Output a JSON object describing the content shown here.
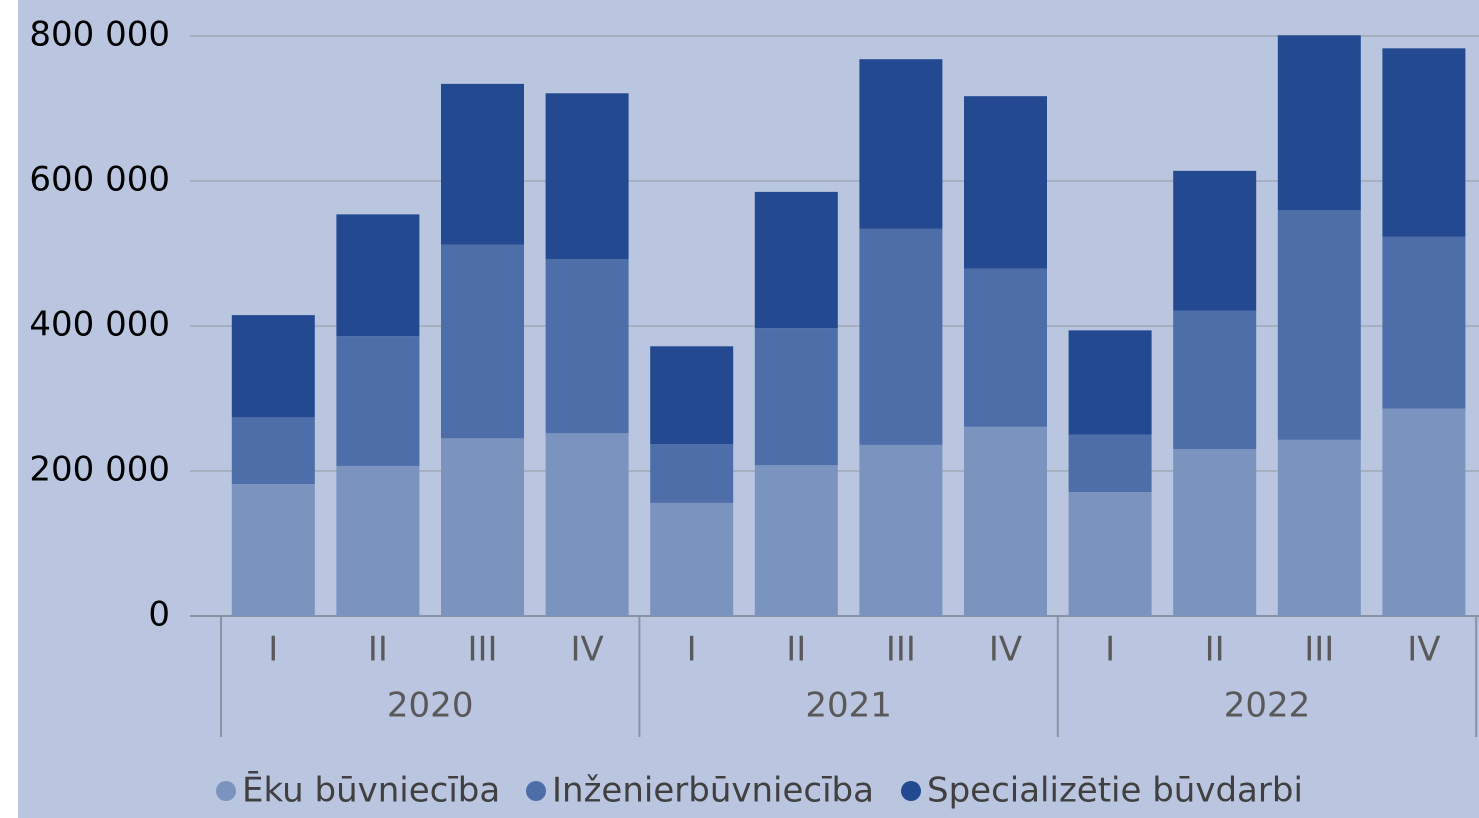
{
  "chart_data": {
    "type": "stacked-bar",
    "categories": [
      "I",
      "II",
      "III",
      "IV",
      "I",
      "II",
      "III",
      "IV",
      "I",
      "II",
      "III",
      "IV"
    ],
    "groups": [
      "2020",
      "2021",
      "2022"
    ],
    "series": [
      {
        "name": "Ēku būvniecība",
        "color": "#7b93bf",
        "values": [
          182000,
          207000,
          245000,
          252000,
          156000,
          208000,
          236000,
          261000,
          171000,
          230000,
          243000,
          286000
        ]
      },
      {
        "name": "Inženierbūvniecība",
        "color": "#4d6ea8",
        "values": [
          92000,
          179000,
          267000,
          240000,
          81000,
          189000,
          298000,
          218000,
          79000,
          191000,
          317000,
          237000
        ]
      },
      {
        "name": "Specializētie būvdarbi",
        "color": "#234a91",
        "values": [
          141000,
          168000,
          222000,
          229000,
          135000,
          188000,
          234000,
          238000,
          144000,
          193000,
          241000,
          260000
        ]
      }
    ],
    "ylim": [
      0,
      800000
    ],
    "yticks": [
      0,
      {
        "value": 200000,
        "label": "200 000"
      },
      {
        "value": 400000,
        "label": "400 000"
      },
      {
        "value": 600000,
        "label": "600 000"
      },
      {
        "value": 800000,
        "label": "800 000"
      }
    ],
    "grid": true,
    "legend": "bottom"
  }
}
